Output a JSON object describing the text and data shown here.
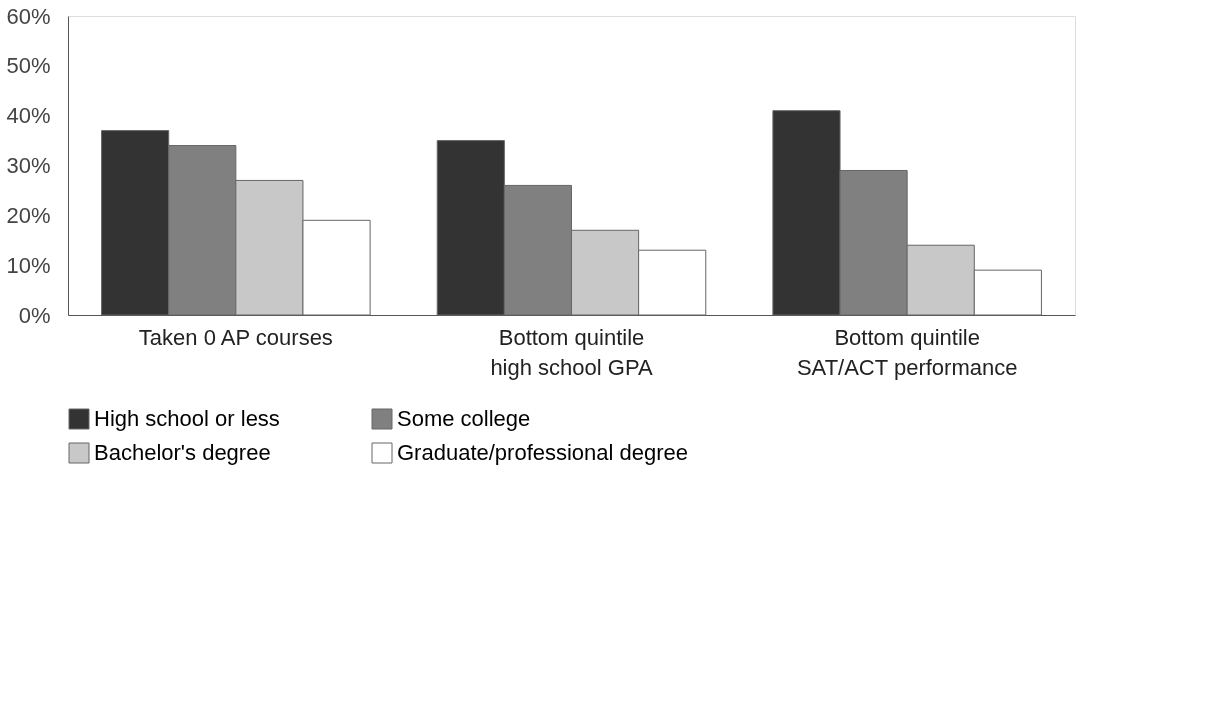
{
  "chart_data": {
    "type": "bar",
    "categories": [
      "Taken 0 AP courses",
      "Bottom quintile\nhigh school GPA",
      "Bottom quintile\nSAT/ACT performance"
    ],
    "series": [
      {
        "name": "High school or less",
        "color": "#333333",
        "values": [
          37,
          35,
          41
        ]
      },
      {
        "name": "Some college",
        "color": "#808080",
        "values": [
          34,
          26,
          29
        ]
      },
      {
        "name": "Bachelor's degree",
        "color": "#c8c8c8",
        "values": [
          27,
          17,
          14
        ]
      },
      {
        "name": "Graduate/professional degree",
        "color": "#ffffff",
        "values": [
          19,
          13,
          9
        ]
      }
    ],
    "ylim": [
      0,
      60
    ],
    "yticks": [
      {
        "value": 0,
        "label": "0%"
      },
      {
        "value": 10,
        "label": "10%"
      },
      {
        "value": 20,
        "label": "20%"
      },
      {
        "value": 30,
        "label": "30%"
      },
      {
        "value": 40,
        "label": "40%"
      },
      {
        "value": 50,
        "label": "50%"
      },
      {
        "value": 60,
        "label": "60%"
      }
    ],
    "grid": false,
    "legend": "bottom"
  }
}
